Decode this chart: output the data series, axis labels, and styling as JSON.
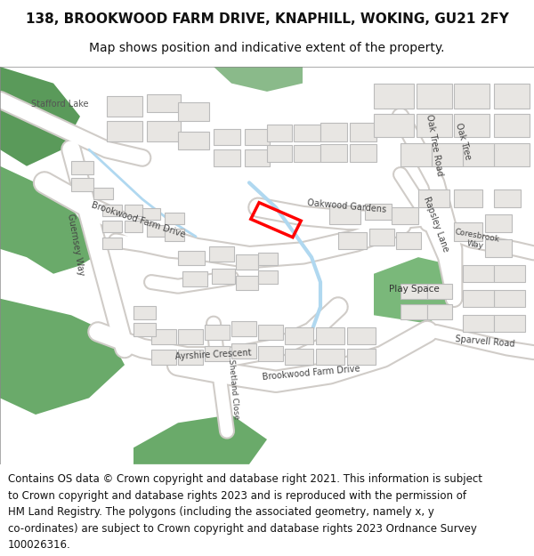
{
  "title_line1": "138, BROOKWOOD FARM DRIVE, KNAPHILL, WOKING, GU21 2FY",
  "title_line2": "Map shows position and indicative extent of the property.",
  "footer_text": "Contains OS data © Crown copyright and database right 2021. This information is subject to Crown copyright and database rights 2023 and is reproduced with the permission of HM Land Registry. The polygons (including the associated geometry, namely x, y co-ordinates) are subject to Crown copyright and database rights 2023 Ordnance Survey 100026316.",
  "title_fontsize": 11,
  "subtitle_fontsize": 10,
  "footer_fontsize": 8.5,
  "bg_color": "#ffffff",
  "map_bg": "#f0eeeb",
  "road_color": "#ffffff",
  "road_stroke": "#d0ccc8",
  "building_fill": "#e8e6e3",
  "building_stroke": "#cccccc",
  "green_fill": "#7ab87a",
  "light_green_fill": "#a8d5a2",
  "water_color": "#aad4e8",
  "red_outline_color": "#ff0000",
  "fig_width": 6.0,
  "fig_height": 6.25,
  "dpi": 100
}
